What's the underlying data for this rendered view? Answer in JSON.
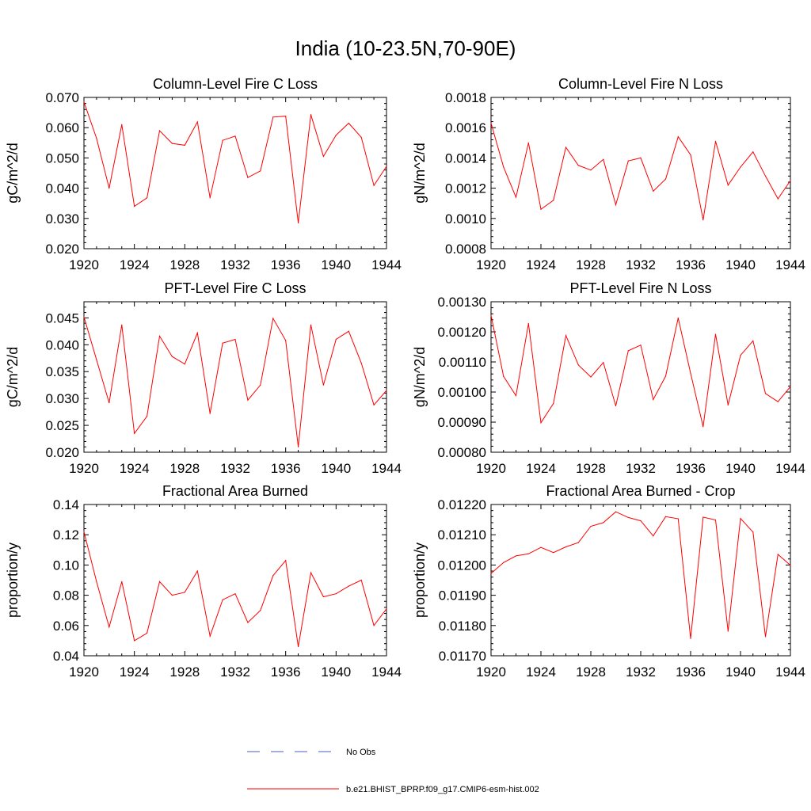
{
  "title": "India (10-23.5N,70-90E)",
  "legend": {
    "entries": [
      {
        "label": "No Obs",
        "color": "#4a5fc1",
        "dash": true
      },
      {
        "label": "b.e21.BHIST_BPRP.f09_g17.CMIP6-esm-hist.002",
        "color": "#ff0000",
        "dash": false
      }
    ]
  },
  "chart_data": [
    {
      "type": "line",
      "title": "Column-Level Fire C Loss",
      "ylabel": "gC/m^2/d",
      "xlim": [
        1920,
        1944
      ],
      "ylim": [
        0.02,
        0.07
      ],
      "xticks": [
        "1920",
        "1924",
        "1928",
        "1932",
        "1936",
        "1940",
        "1944"
      ],
      "yticks": [
        "0.020",
        "0.030",
        "0.040",
        "0.050",
        "0.060",
        "0.070"
      ],
      "x": [
        1920,
        1921,
        1922,
        1923,
        1924,
        1925,
        1926,
        1927,
        1928,
        1929,
        1930,
        1931,
        1932,
        1933,
        1934,
        1935,
        1936,
        1937,
        1938,
        1939,
        1940,
        1941,
        1942,
        1943,
        1944
      ],
      "series": [
        {
          "name": "b.e21.BHIST_BPRP.f09_g17.CMIP6-esm-hist.002",
          "color": "#ff0000",
          "values": [
            0.0685,
            0.0565,
            0.04,
            0.061,
            0.034,
            0.0368,
            0.059,
            0.0548,
            0.0542,
            0.0619,
            0.0368,
            0.0558,
            0.0572,
            0.0435,
            0.0457,
            0.0635,
            0.0638,
            0.0285,
            0.0643,
            0.0505,
            0.0575,
            0.0615,
            0.0568,
            0.0409,
            0.0472
          ]
        }
      ]
    },
    {
      "type": "line",
      "title": "Column-Level Fire N Loss",
      "ylabel": "gN/m^2/d",
      "xlim": [
        1920,
        1944
      ],
      "ylim": [
        0.0008,
        0.0018
      ],
      "xticks": [
        "1920",
        "1924",
        "1928",
        "1932",
        "1936",
        "1940",
        "1944"
      ],
      "yticks": [
        "0.0008",
        "0.0010",
        "0.0012",
        "0.0014",
        "0.0016",
        "0.0018"
      ],
      "x": [
        1920,
        1921,
        1922,
        1923,
        1924,
        1925,
        1926,
        1927,
        1928,
        1929,
        1930,
        1931,
        1932,
        1933,
        1934,
        1935,
        1936,
        1937,
        1938,
        1939,
        1940,
        1941,
        1942,
        1943,
        1944
      ],
      "series": [
        {
          "name": "b.e21.BHIST_BPRP.f09_g17.CMIP6-esm-hist.002",
          "color": "#ff0000",
          "values": [
            0.00163,
            0.00134,
            0.00114,
            0.0015,
            0.00106,
            0.00112,
            0.00147,
            0.00135,
            0.00132,
            0.00139,
            0.00109,
            0.00138,
            0.0014,
            0.00118,
            0.00126,
            0.00154,
            0.00142,
            0.00099,
            0.00151,
            0.00122,
            0.00134,
            0.00144,
            0.00128,
            0.00113,
            0.00125
          ]
        }
      ]
    },
    {
      "type": "line",
      "title": "PFT-Level Fire C Loss",
      "ylabel": "gC/m^2/d",
      "xlim": [
        1920,
        1944
      ],
      "ylim": [
        0.02,
        0.048
      ],
      "xticks": [
        "1920",
        "1924",
        "1928",
        "1932",
        "1936",
        "1940",
        "1944"
      ],
      "yticks": [
        "0.020",
        "0.025",
        "0.030",
        "0.035",
        "0.040",
        "0.045"
      ],
      "x": [
        1920,
        1921,
        1922,
        1923,
        1924,
        1925,
        1926,
        1927,
        1928,
        1929,
        1930,
        1931,
        1932,
        1933,
        1934,
        1935,
        1936,
        1937,
        1938,
        1939,
        1940,
        1941,
        1942,
        1943,
        1944
      ],
      "series": [
        {
          "name": "b.e21.BHIST_BPRP.f09_g17.CMIP6-esm-hist.002",
          "color": "#ff0000",
          "values": [
            0.0452,
            0.0372,
            0.0292,
            0.0437,
            0.0235,
            0.0267,
            0.0416,
            0.0378,
            0.0364,
            0.0422,
            0.0272,
            0.0403,
            0.041,
            0.0297,
            0.0325,
            0.0449,
            0.0408,
            0.021,
            0.0437,
            0.0325,
            0.041,
            0.0425,
            0.0366,
            0.0288,
            0.0315
          ]
        }
      ]
    },
    {
      "type": "line",
      "title": "PFT-Level Fire N Loss",
      "ylabel": "gN/m^2/d",
      "xlim": [
        1920,
        1944
      ],
      "ylim": [
        0.0008,
        0.0013
      ],
      "xticks": [
        "1920",
        "1924",
        "1928",
        "1932",
        "1936",
        "1940",
        "1944"
      ],
      "yticks": [
        "0.00080",
        "0.00090",
        "0.00100",
        "0.00110",
        "0.00120",
        "0.00130"
      ],
      "x": [
        1920,
        1921,
        1922,
        1923,
        1924,
        1925,
        1926,
        1927,
        1928,
        1929,
        1930,
        1931,
        1932,
        1933,
        1934,
        1935,
        1936,
        1937,
        1938,
        1939,
        1940,
        1941,
        1942,
        1943,
        1944
      ],
      "series": [
        {
          "name": "b.e21.BHIST_BPRP.f09_g17.CMIP6-esm-hist.002",
          "color": "#ff0000",
          "values": [
            0.001255,
            0.001052,
            0.000988,
            0.001228,
            0.000898,
            0.000962,
            0.001188,
            0.00109,
            0.00105,
            0.001098,
            0.000954,
            0.001137,
            0.001156,
            0.000975,
            0.001053,
            0.001246,
            0.001062,
            0.000885,
            0.001192,
            0.000957,
            0.001122,
            0.00117,
            0.000995,
            0.000968,
            0.001018
          ]
        }
      ]
    },
    {
      "type": "line",
      "title": "Fractional Area Burned",
      "ylabel": "proportion/y",
      "xlim": [
        1920,
        1944
      ],
      "ylim": [
        0.04,
        0.14
      ],
      "xticks": [
        "1920",
        "1924",
        "1928",
        "1932",
        "1936",
        "1940",
        "1944"
      ],
      "yticks": [
        "0.04",
        "0.06",
        "0.08",
        "0.10",
        "0.12",
        "0.14"
      ],
      "x": [
        1920,
        1921,
        1922,
        1923,
        1924,
        1925,
        1926,
        1927,
        1928,
        1929,
        1930,
        1931,
        1932,
        1933,
        1934,
        1935,
        1936,
        1937,
        1938,
        1939,
        1940,
        1941,
        1942,
        1943,
        1944
      ],
      "series": [
        {
          "name": "b.e21.BHIST_BPRP.f09_g17.CMIP6-esm-hist.002",
          "color": "#ff0000",
          "values": [
            0.122,
            0.089,
            0.059,
            0.089,
            0.05,
            0.055,
            0.089,
            0.08,
            0.082,
            0.096,
            0.053,
            0.077,
            0.081,
            0.062,
            0.07,
            0.093,
            0.103,
            0.046,
            0.095,
            0.079,
            0.081,
            0.086,
            0.09,
            0.06,
            0.071
          ]
        }
      ]
    },
    {
      "type": "line",
      "title": "Fractional Area Burned - Crop",
      "ylabel": "proportion/y",
      "xlim": [
        1920,
        1944
      ],
      "ylim": [
        0.0117,
        0.0122
      ],
      "xticks": [
        "1920",
        "1924",
        "1928",
        "1932",
        "1936",
        "1940",
        "1944"
      ],
      "yticks": [
        "0.01170",
        "0.01180",
        "0.01190",
        "0.01200",
        "0.01210",
        "0.01220"
      ],
      "x": [
        1920,
        1921,
        1922,
        1923,
        1924,
        1925,
        1926,
        1927,
        1928,
        1929,
        1930,
        1931,
        1932,
        1933,
        1934,
        1935,
        1936,
        1937,
        1938,
        1939,
        1940,
        1941,
        1942,
        1943,
        1944
      ],
      "series": [
        {
          "name": "b.e21.BHIST_BPRP.f09_g17.CMIP6-esm-hist.002",
          "color": "#ff0000",
          "values": [
            0.011972,
            0.012008,
            0.01203,
            0.012037,
            0.012058,
            0.012041,
            0.01206,
            0.012074,
            0.012128,
            0.01214,
            0.012176,
            0.012157,
            0.012146,
            0.012096,
            0.01216,
            0.012153,
            0.011757,
            0.012158,
            0.012149,
            0.011781,
            0.012154,
            0.012109,
            0.011763,
            0.012035,
            0.011999
          ]
        }
      ]
    }
  ]
}
